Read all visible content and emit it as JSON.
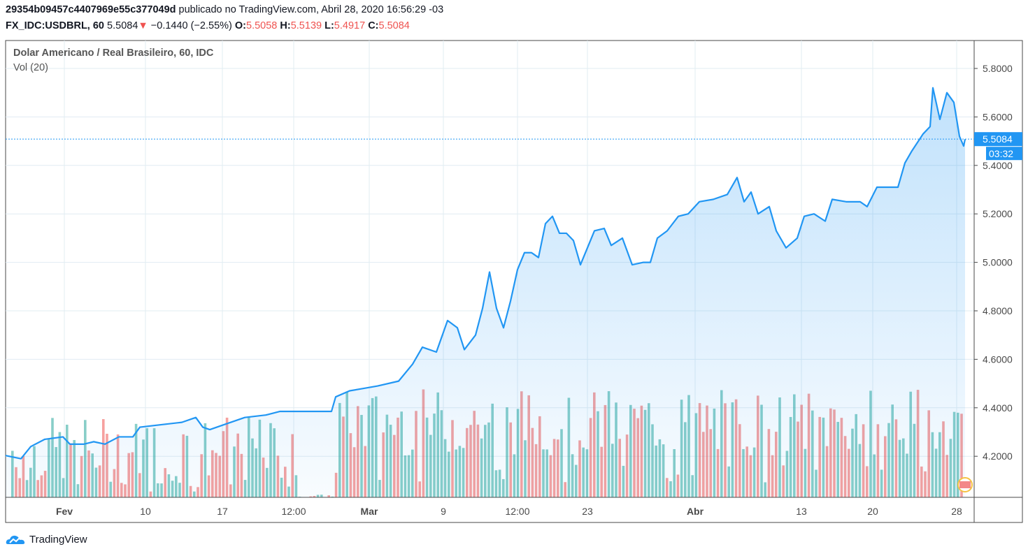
{
  "header": {
    "publisher_id": "29354b09457c4407969e55c377049d",
    "published_text": "publicado no TradingView.com, Abril 28, 2020 16:56:29 -03",
    "symbol": "FX_IDC:USDBRL, 60",
    "last": "5.5084",
    "change": "−0.1440 (−2.55%)",
    "o_label": "O:",
    "o": "5.5058",
    "h_label": "H:",
    "h": "5.5139",
    "l_label": "L:",
    "l": "5.4917",
    "c_label": "C:",
    "c": "5.5084"
  },
  "legend": {
    "title": "Dolar Americano / Real Brasileiro, 60, IDC",
    "volume": "Vol (20)"
  },
  "footer": {
    "brand": "TradingView"
  },
  "colors": {
    "line": "#2196f3",
    "up": "#26a69a",
    "down": "#ef5350",
    "grid": "#e1ecf2"
  },
  "chart_data": {
    "type": "area",
    "title": "Dolar Americano / Real Brasileiro, 60, IDC",
    "ylim": [
      4.04,
      5.9
    ],
    "y_ticks": [
      "5.8000",
      "5.6000",
      "5.4000",
      "5.2000",
      "5.0000",
      "4.8000",
      "4.6000",
      "4.4000",
      "4.2000"
    ],
    "x_ticks": [
      {
        "label": "Fev",
        "bar": 42,
        "bold": true
      },
      {
        "label": "10",
        "bar": 100
      },
      {
        "label": "17",
        "bar": 155
      },
      {
        "label": "12:00",
        "bar": 206
      },
      {
        "label": "Mar",
        "bar": 260,
        "bold": true
      },
      {
        "label": "9",
        "bar": 313
      },
      {
        "label": "12:00",
        "bar": 366
      },
      {
        "label": "23",
        "bar": 416
      },
      {
        "label": "Abr",
        "bar": 493,
        "bold": true
      },
      {
        "label": "13",
        "bar": 569
      },
      {
        "label": "20",
        "bar": 620
      },
      {
        "label": "28",
        "bar": 680
      }
    ],
    "last_price_label": "5.5084",
    "countdown": "03:32",
    "series": [
      {
        "name": "USDBRL",
        "x": [
          0,
          11,
          18,
          28,
          41,
          46,
          56,
          63,
          71,
          81,
          91,
          96,
          111,
          126,
          136,
          141,
          146,
          156,
          171,
          186,
          196,
          211,
          233,
          236,
          246,
          256,
          266,
          281,
          291,
          298,
          308,
          316,
          323,
          328,
          336,
          341,
          346,
          351,
          356,
          361,
          366,
          371,
          376,
          381,
          386,
          391,
          396,
          401,
          406,
          411,
          416,
          421,
          428,
          433,
          441,
          448,
          456,
          461,
          466,
          473,
          481,
          488,
          496,
          506,
          516,
          523,
          528,
          533,
          538,
          546,
          551,
          558,
          566,
          571,
          578,
          586,
          591,
          601,
          611,
          616,
          623,
          638,
          643,
          648,
          656,
          661,
          663,
          668,
          673,
          678,
          682,
          685,
          686
        ],
        "y": [
          4.203,
          4.19,
          4.24,
          4.27,
          4.28,
          4.25,
          4.25,
          4.26,
          4.25,
          4.28,
          4.28,
          4.32,
          4.33,
          4.34,
          4.36,
          4.32,
          4.31,
          4.33,
          4.36,
          4.37,
          4.385,
          4.385,
          4.385,
          4.445,
          4.47,
          4.48,
          4.49,
          4.51,
          4.58,
          4.65,
          4.63,
          4.76,
          4.73,
          4.64,
          4.7,
          4.81,
          4.96,
          4.81,
          4.73,
          4.84,
          4.97,
          5.04,
          5.04,
          5.02,
          5.16,
          5.19,
          5.12,
          5.12,
          5.09,
          4.99,
          5.06,
          5.13,
          5.14,
          5.07,
          5.1,
          4.99,
          5.0,
          5.0,
          5.1,
          5.13,
          5.19,
          5.2,
          5.25,
          5.26,
          5.28,
          5.35,
          5.25,
          5.29,
          5.2,
          5.23,
          5.13,
          5.06,
          5.1,
          5.19,
          5.2,
          5.17,
          5.26,
          5.25,
          5.25,
          5.23,
          5.31,
          5.31,
          5.41,
          5.46,
          5.53,
          5.56,
          5.72,
          5.59,
          5.7,
          5.66,
          5.52,
          5.48,
          5.508
        ]
      }
    ]
  }
}
